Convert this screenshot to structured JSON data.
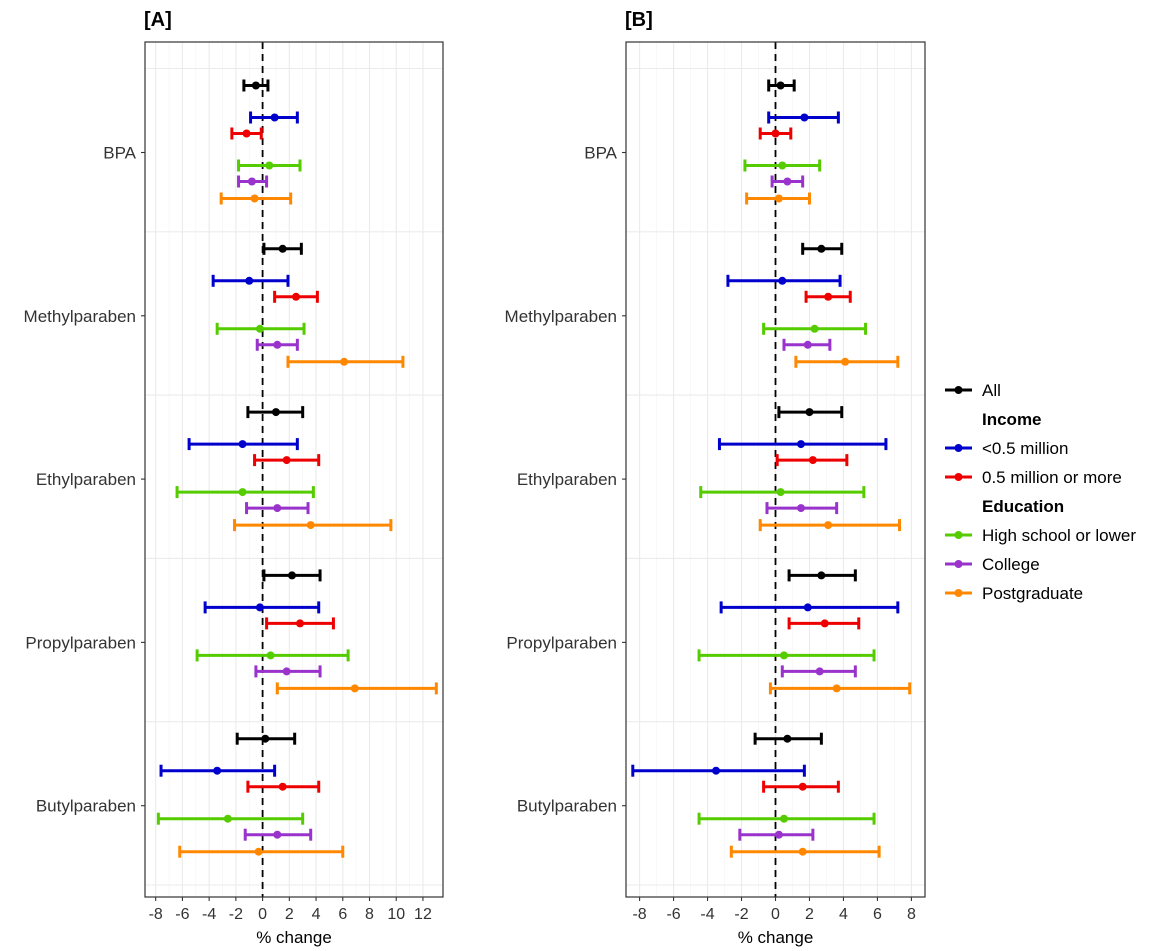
{
  "chart_data": [
    {
      "type": "forest",
      "title": "[A]",
      "xlabel": "% change",
      "xlim": [
        -8.8,
        13.5
      ],
      "xticks": [
        -8,
        -6,
        -4,
        -2,
        0,
        2,
        4,
        6,
        8,
        10,
        12
      ],
      "xtick_labels": [
        "-8",
        "-6",
        "-4",
        "-2",
        "0",
        "2",
        "4",
        "6",
        "8",
        "10",
        "12"
      ],
      "reference_line": 0,
      "categories": [
        "BPA",
        "Methylparaben",
        "Ethylparaben",
        "Propylparaben",
        "Butylparaben"
      ],
      "groups": [
        "All",
        "<0.5 million",
        "0.5 million or more",
        "High school or lower",
        "College",
        "Postgraduate"
      ],
      "estimates": [
        [
          {
            "est": -0.5,
            "lo": -1.4,
            "hi": 0.4
          },
          {
            "est": 0.9,
            "lo": -0.9,
            "hi": 2.6
          },
          {
            "est": -1.2,
            "lo": -2.3,
            "hi": -0.1
          },
          {
            "est": 0.5,
            "lo": -1.8,
            "hi": 2.8
          },
          {
            "est": -0.8,
            "lo": -1.8,
            "hi": 0.3
          },
          {
            "est": -0.6,
            "lo": -3.1,
            "hi": 2.1
          }
        ],
        [
          {
            "est": 1.5,
            "lo": 0.1,
            "hi": 2.9
          },
          {
            "est": -1.0,
            "lo": -3.7,
            "hi": 1.9
          },
          {
            "est": 2.5,
            "lo": 0.9,
            "hi": 4.1
          },
          {
            "est": -0.2,
            "lo": -3.4,
            "hi": 3.1
          },
          {
            "est": 1.1,
            "lo": -0.4,
            "hi": 2.6
          },
          {
            "est": 6.1,
            "lo": 1.9,
            "hi": 10.5
          }
        ],
        [
          {
            "est": 1.0,
            "lo": -1.1,
            "hi": 3.0
          },
          {
            "est": -1.5,
            "lo": -5.5,
            "hi": 2.6
          },
          {
            "est": 1.8,
            "lo": -0.6,
            "hi": 4.2
          },
          {
            "est": -1.5,
            "lo": -6.4,
            "hi": 3.8
          },
          {
            "est": 1.1,
            "lo": -1.2,
            "hi": 3.4
          },
          {
            "est": 3.6,
            "lo": -2.1,
            "hi": 9.6
          }
        ],
        [
          {
            "est": 2.2,
            "lo": 0.1,
            "hi": 4.3
          },
          {
            "est": -0.2,
            "lo": -4.3,
            "hi": 4.2
          },
          {
            "est": 2.8,
            "lo": 0.3,
            "hi": 5.3
          },
          {
            "est": 0.6,
            "lo": -4.9,
            "hi": 6.4
          },
          {
            "est": 1.8,
            "lo": -0.5,
            "hi": 4.3
          },
          {
            "est": 6.9,
            "lo": 1.1,
            "hi": 13.0
          }
        ],
        [
          {
            "est": 0.2,
            "lo": -1.9,
            "hi": 2.4
          },
          {
            "est": -3.4,
            "lo": -7.6,
            "hi": 0.9
          },
          {
            "est": 1.5,
            "lo": -1.1,
            "hi": 4.2
          },
          {
            "est": -2.6,
            "lo": -7.8,
            "hi": 3.0
          },
          {
            "est": 1.1,
            "lo": -1.3,
            "hi": 3.6
          },
          {
            "est": -0.3,
            "lo": -6.2,
            "hi": 6.0
          }
        ]
      ]
    },
    {
      "type": "forest",
      "title": "[B]",
      "xlabel": "% change",
      "xlim": [
        -8.8,
        8.8
      ],
      "xticks": [
        -8,
        -6,
        -4,
        -2,
        0,
        2,
        4,
        6,
        8
      ],
      "xtick_labels": [
        "-8",
        "-6",
        "-4",
        "-2",
        "0",
        "2",
        "4",
        "6",
        "8"
      ],
      "reference_line": 0,
      "categories": [
        "BPA",
        "Methylparaben",
        "Ethylparaben",
        "Propylparaben",
        "Butylparaben"
      ],
      "groups": [
        "All",
        "<0.5 million",
        "0.5 million or more",
        "High school or lower",
        "College",
        "Postgraduate"
      ],
      "estimates": [
        [
          {
            "est": 0.3,
            "lo": -0.4,
            "hi": 1.1
          },
          {
            "est": 1.7,
            "lo": -0.4,
            "hi": 3.7
          },
          {
            "est": 0.0,
            "lo": -0.9,
            "hi": 0.9
          },
          {
            "est": 0.4,
            "lo": -1.8,
            "hi": 2.6
          },
          {
            "est": 0.7,
            "lo": -0.2,
            "hi": 1.6
          },
          {
            "est": 0.2,
            "lo": -1.7,
            "hi": 2.0
          }
        ],
        [
          {
            "est": 2.7,
            "lo": 1.6,
            "hi": 3.9
          },
          {
            "est": 0.4,
            "lo": -2.8,
            "hi": 3.8
          },
          {
            "est": 3.1,
            "lo": 1.8,
            "hi": 4.4
          },
          {
            "est": 2.3,
            "lo": -0.7,
            "hi": 5.3
          },
          {
            "est": 1.9,
            "lo": 0.5,
            "hi": 3.2
          },
          {
            "est": 4.1,
            "lo": 1.2,
            "hi": 7.2
          }
        ],
        [
          {
            "est": 2.0,
            "lo": 0.2,
            "hi": 3.9
          },
          {
            "est": 1.5,
            "lo": -3.3,
            "hi": 6.5
          },
          {
            "est": 2.2,
            "lo": 0.1,
            "hi": 4.2
          },
          {
            "est": 0.3,
            "lo": -4.4,
            "hi": 5.2
          },
          {
            "est": 1.5,
            "lo": -0.5,
            "hi": 3.6
          },
          {
            "est": 3.1,
            "lo": -0.9,
            "hi": 7.3
          }
        ],
        [
          {
            "est": 2.7,
            "lo": 0.8,
            "hi": 4.7
          },
          {
            "est": 1.9,
            "lo": -3.2,
            "hi": 7.2
          },
          {
            "est": 2.9,
            "lo": 0.8,
            "hi": 4.9
          },
          {
            "est": 0.5,
            "lo": -4.5,
            "hi": 5.8
          },
          {
            "est": 2.6,
            "lo": 0.4,
            "hi": 4.7
          },
          {
            "est": 3.6,
            "lo": -0.3,
            "hi": 7.9
          }
        ],
        [
          {
            "est": 0.7,
            "lo": -1.2,
            "hi": 2.7
          },
          {
            "est": -3.5,
            "lo": -8.4,
            "hi": 1.7
          },
          {
            "est": 1.6,
            "lo": -0.7,
            "hi": 3.7
          },
          {
            "est": 0.5,
            "lo": -4.5,
            "hi": 5.8
          },
          {
            "est": 0.2,
            "lo": -2.1,
            "hi": 2.2
          },
          {
            "est": 1.6,
            "lo": -2.6,
            "hi": 6.1
          }
        ]
      ]
    }
  ],
  "legend": {
    "items": [
      {
        "kind": "entry",
        "label": "All",
        "color": "#000000"
      },
      {
        "kind": "header",
        "label": "Income"
      },
      {
        "kind": "entry",
        "label": "<0.5 million",
        "color": "#0000cc"
      },
      {
        "kind": "entry",
        "label": "0.5 million or more",
        "color": "#ee0000"
      },
      {
        "kind": "header",
        "label": "Education"
      },
      {
        "kind": "entry",
        "label": "High school or lower",
        "color": "#55cc00"
      },
      {
        "kind": "entry",
        "label": "College",
        "color": "#9933cc"
      },
      {
        "kind": "entry",
        "label": "Postgraduate",
        "color": "#ff8800"
      }
    ]
  },
  "colors": {
    "All": "#000000",
    "<0.5 million": "#0000cc",
    "0.5 million or more": "#ee0000",
    "High school or lower": "#55cc00",
    "College": "#9933cc",
    "Postgraduate": "#ff8800"
  }
}
